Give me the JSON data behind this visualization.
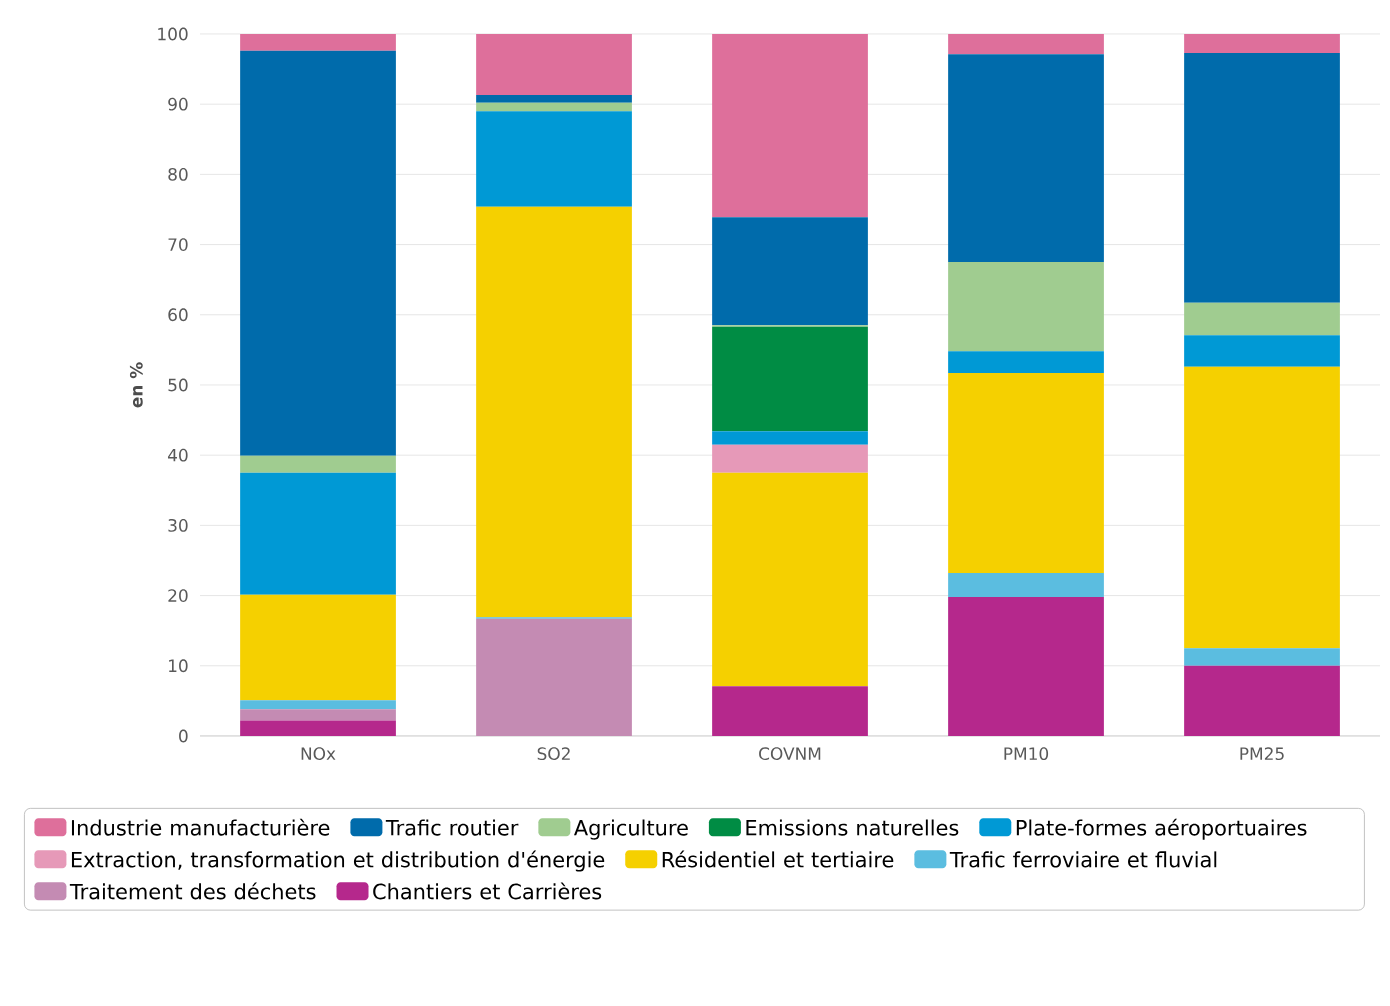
{
  "chart_data": {
    "type": "bar",
    "stacked": true,
    "ylabel": "en %",
    "categories": [
      "NOx",
      "SO2",
      "COVNM",
      "PM10",
      "PM25"
    ],
    "ylim": [
      0,
      100
    ],
    "yticks": [
      0,
      10,
      20,
      30,
      40,
      50,
      60,
      70,
      80,
      90,
      100
    ],
    "grid": "y",
    "legend": "bottom",
    "series": [
      {
        "name": "Chantiers et Carrières",
        "color": "#b5288c",
        "values": [
          2.2,
          0,
          7.1,
          19.8,
          10.0
        ]
      },
      {
        "name": "Traitement des déchets",
        "color": "#c48bb3",
        "values": [
          1.6,
          16.7,
          0,
          0,
          0
        ]
      },
      {
        "name": "Trafic ferroviaire et fluvial",
        "color": "#5bbde0",
        "values": [
          1.3,
          0.2,
          0,
          3.4,
          2.5
        ]
      },
      {
        "name": "Résidentiel et tertiaire",
        "color": "#f5d000",
        "values": [
          15.0,
          58.5,
          30.4,
          28.5,
          40.1
        ]
      },
      {
        "name": "Extraction, transformation et distribution d'énergie",
        "color": "#e699b8",
        "values": [
          0,
          0,
          4.0,
          0,
          0
        ]
      },
      {
        "name": "Plate-formes aéroportuaires",
        "color": "#0099d5",
        "values": [
          17.4,
          13.6,
          1.9,
          3.1,
          4.5
        ]
      },
      {
        "name": "Emissions naturelles",
        "color": "#008c44",
        "values": [
          0,
          0,
          14.9,
          0,
          0
        ]
      },
      {
        "name": "Agriculture",
        "color": "#a0cc90",
        "values": [
          2.4,
          1.2,
          0.2,
          12.7,
          4.6
        ]
      },
      {
        "name": "Trafic routier",
        "color": "#006bab",
        "values": [
          57.7,
          1.1,
          15.4,
          29.6,
          35.6
        ]
      },
      {
        "name": "Industrie manufacturière",
        "color": "#de6f9b",
        "values": [
          2.4,
          8.7,
          26.1,
          2.9,
          2.7
        ]
      }
    ]
  }
}
